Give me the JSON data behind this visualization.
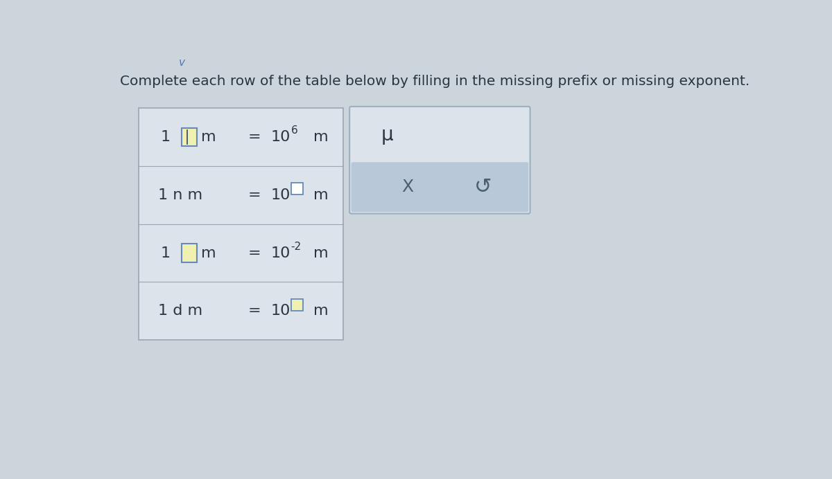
{
  "title": "Complete each row of the table below by filling in the missing prefix or missing exponent.",
  "title_fontsize": 14.5,
  "bg_color": "#cdd5dc",
  "table_bg": "#dce3ea",
  "table_border_color": "#9aa5af",
  "box_bg_yellow": "#f0f0b0",
  "box_bg_white": "#ffffff",
  "box_border_color": "#6688bb",
  "text_color": "#2a3540",
  "rows": [
    {
      "left1": "1",
      "prefix_box": true,
      "prefix_yellow": true,
      "prefix_cursor": true,
      "suffix_left": "m",
      "equals": "=",
      "base": "10",
      "exp": "6",
      "exp_box": false,
      "suffix_right": "m"
    },
    {
      "left1": "1 n m",
      "prefix_box": false,
      "suffix_left": "",
      "equals": "=",
      "base": "10",
      "exp": "",
      "exp_box": true,
      "exp_yellow": false,
      "suffix_right": "m"
    },
    {
      "left1": "1",
      "prefix_box": true,
      "prefix_yellow": true,
      "prefix_cursor": false,
      "suffix_left": "m",
      "equals": "=",
      "base": "10",
      "exp": "-2",
      "exp_box": false,
      "suffix_right": "m"
    },
    {
      "left1": "1 d m",
      "prefix_box": false,
      "suffix_left": "",
      "equals": "=",
      "base": "10",
      "exp": "",
      "exp_box": true,
      "exp_yellow": true,
      "suffix_right": "m"
    }
  ],
  "panel_mu": "μ",
  "panel_x": "X",
  "panel_undo": "↺",
  "panel_top_bg": "#dce3ea",
  "panel_bottom_bg": "#b8c8d8",
  "panel_border": "#9ab0c0"
}
